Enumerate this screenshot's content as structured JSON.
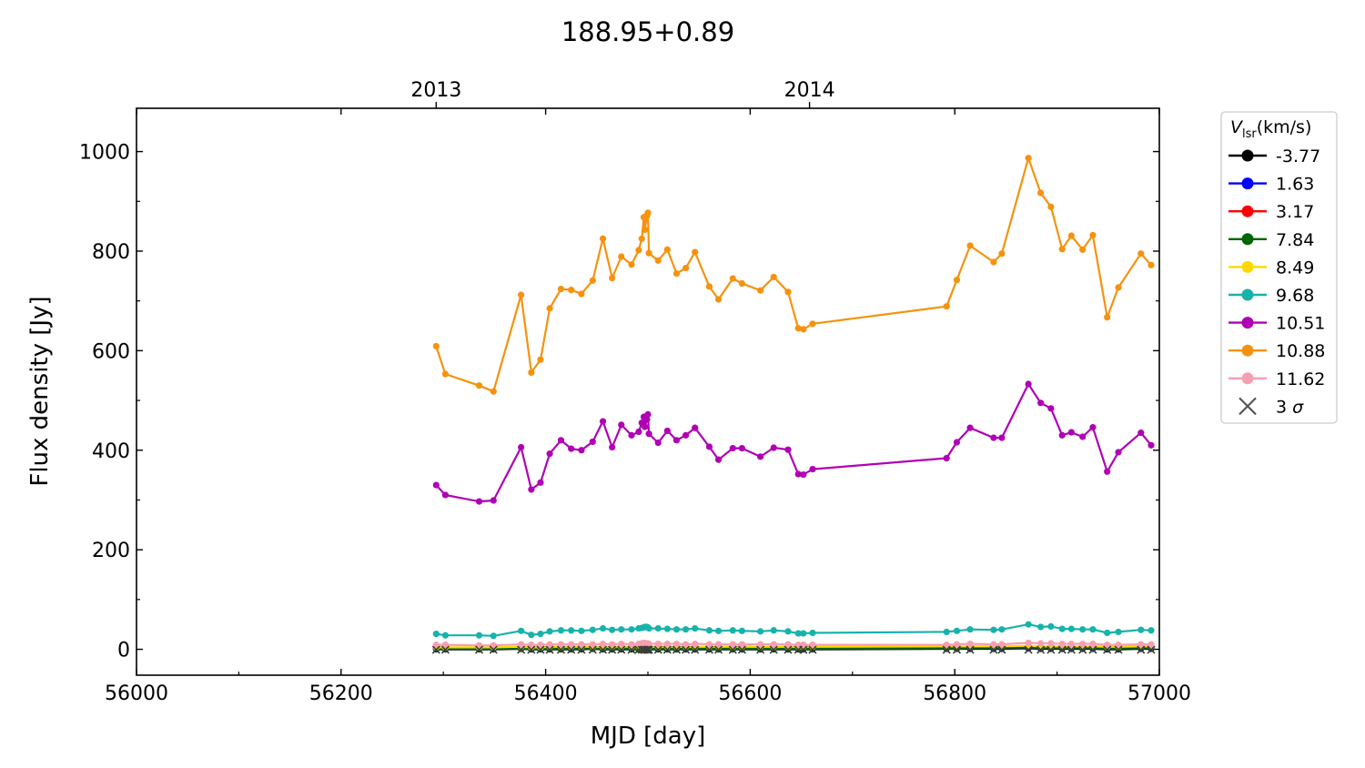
{
  "chart_data": {
    "type": "line",
    "title": "188.95+0.89",
    "xlabel": "MJD [day]",
    "ylabel": "Flux density [Jy]",
    "xlim": [
      56000,
      57000
    ],
    "ylim": [
      -52,
      1087
    ],
    "xticks": [
      56000,
      56200,
      56400,
      56600,
      56800,
      57000
    ],
    "yticks": [
      0,
      200,
      400,
      600,
      800,
      1000
    ],
    "top_axis": {
      "ticks": [
        {
          "x": 56293,
          "label": "2013"
        },
        {
          "x": 56658,
          "label": "2014"
        }
      ]
    },
    "grid": false,
    "legend": {
      "placement": "outside-right",
      "title_main": "V",
      "title_sub": "lsr",
      "title_unit": "(km/s)",
      "sigma_label": "3 σ"
    },
    "x": [
      56293,
      56302,
      56335,
      56349,
      56376,
      56386,
      56395,
      56404,
      56415,
      56425,
      56435,
      56446,
      56456,
      56465,
      56474,
      56484,
      56491,
      56494,
      56496,
      56497,
      56499,
      56500,
      56501,
      56510,
      56519,
      56528,
      56537,
      56546,
      56560,
      56569,
      56583,
      56592,
      56610,
      56623,
      56637,
      56647,
      56652,
      56661,
      56792,
      56802,
      56815,
      56838,
      56846,
      56872,
      56884,
      56894,
      56905,
      56914,
      56925,
      56935,
      56949,
      56960,
      56982,
      56992
    ],
    "series": [
      {
        "name": "-3.77",
        "color": "#000000",
        "values": [
          0,
          0,
          0,
          0,
          1,
          0,
          0,
          0,
          0,
          0,
          0,
          1,
          0,
          0,
          0,
          0,
          0,
          0,
          0,
          0,
          1,
          1,
          0,
          0,
          0,
          0,
          0,
          0,
          0,
          0,
          0,
          0,
          0,
          0,
          0,
          0,
          0,
          0,
          1,
          1,
          1,
          1,
          1,
          2,
          1,
          1,
          1,
          1,
          1,
          1,
          0,
          0,
          1,
          1
        ]
      },
      {
        "name": "1.63",
        "color": "#0000ff",
        "values": [
          1,
          1,
          1,
          1,
          2,
          1,
          1,
          1,
          1,
          1,
          1,
          2,
          1,
          1,
          1,
          1,
          1,
          1,
          2,
          2,
          2,
          2,
          1,
          1,
          1,
          1,
          1,
          1,
          1,
          1,
          1,
          1,
          1,
          1,
          1,
          1,
          1,
          1,
          2,
          2,
          2,
          2,
          2,
          3,
          2,
          2,
          2,
          2,
          2,
          2,
          1,
          1,
          2,
          2
        ]
      },
      {
        "name": "3.17",
        "color": "#ff0000",
        "values": [
          2,
          2,
          2,
          2,
          3,
          2,
          2,
          2,
          2,
          2,
          2,
          3,
          2,
          2,
          2,
          2,
          2,
          2,
          3,
          3,
          3,
          3,
          2,
          2,
          2,
          2,
          2,
          2,
          2,
          2,
          2,
          2,
          2,
          2,
          2,
          2,
          2,
          2,
          3,
          3,
          3,
          3,
          3,
          4,
          3,
          3,
          3,
          3,
          3,
          3,
          2,
          2,
          3,
          3
        ]
      },
      {
        "name": "7.84",
        "color": "#006400",
        "values": [
          1,
          1,
          1,
          1,
          2,
          1,
          1,
          1,
          1,
          1,
          1,
          2,
          1,
          1,
          1,
          1,
          1,
          1,
          2,
          2,
          2,
          2,
          1,
          1,
          1,
          1,
          1,
          1,
          1,
          1,
          1,
          1,
          1,
          1,
          1,
          1,
          1,
          1,
          2,
          2,
          3,
          3,
          3,
          4,
          3,
          3,
          3,
          3,
          3,
          3,
          2,
          2,
          3,
          3
        ]
      },
      {
        "name": "8.49",
        "color": "#ffd700",
        "values": [
          4,
          4,
          4,
          4,
          5,
          4,
          4,
          5,
          5,
          5,
          5,
          5,
          5,
          5,
          5,
          5,
          5,
          5,
          6,
          6,
          6,
          6,
          5,
          5,
          5,
          5,
          5,
          5,
          5,
          5,
          5,
          5,
          5,
          5,
          5,
          5,
          5,
          5,
          6,
          6,
          6,
          6,
          6,
          7,
          6,
          6,
          6,
          6,
          6,
          6,
          5,
          5,
          6,
          6
        ]
      },
      {
        "name": "9.68",
        "color": "#17b3ab",
        "values": [
          31,
          28,
          28,
          27,
          37,
          29,
          31,
          36,
          38,
          38,
          37,
          39,
          42,
          39,
          40,
          40,
          42,
          43,
          44,
          45,
          45,
          44,
          42,
          42,
          41,
          40,
          40,
          42,
          38,
          37,
          38,
          37,
          36,
          38,
          36,
          32,
          32,
          33,
          35,
          37,
          40,
          39,
          40,
          50,
          45,
          46,
          41,
          41,
          40,
          40,
          33,
          35,
          39,
          38
        ]
      },
      {
        "name": "10.51",
        "color": "#b000b5",
        "values": [
          330,
          310,
          297,
          299,
          406,
          321,
          335,
          393,
          420,
          403,
          400,
          417,
          458,
          406,
          451,
          430,
          437,
          455,
          467,
          447,
          462,
          472,
          433,
          415,
          439,
          420,
          430,
          445,
          407,
          381,
          404,
          404,
          387,
          405,
          401,
          352,
          351,
          362,
          384,
          416,
          445,
          425,
          425,
          533,
          495,
          484,
          430,
          436,
          427,
          446,
          357,
          396,
          435,
          410
        ]
      },
      {
        "name": "10.88",
        "color": "#f5920e",
        "values": [
          609,
          553,
          530,
          518,
          712,
          556,
          582,
          685,
          724,
          722,
          714,
          741,
          825,
          746,
          789,
          773,
          802,
          825,
          868,
          843,
          871,
          877,
          796,
          781,
          803,
          755,
          766,
          798,
          729,
          703,
          745,
          735,
          721,
          748,
          718,
          645,
          643,
          654,
          689,
          742,
          811,
          778,
          795,
          987,
          917,
          889,
          804,
          831,
          803,
          832,
          667,
          727,
          795,
          772
        ]
      },
      {
        "name": "11.62",
        "color": "#f5a0b0",
        "values": [
          9,
          9,
          8,
          8,
          10,
          9,
          9,
          10,
          10,
          10,
          10,
          10,
          11,
          10,
          11,
          10,
          11,
          12,
          13,
          12,
          12,
          12,
          11,
          11,
          11,
          11,
          10,
          11,
          10,
          10,
          10,
          10,
          10,
          10,
          10,
          9,
          9,
          9,
          9,
          10,
          11,
          10,
          10,
          13,
          12,
          12,
          11,
          11,
          11,
          11,
          9,
          9,
          10,
          10
        ]
      },
      {
        "name": "3 σ",
        "color": "#3c3c3c",
        "marker": "x",
        "values": [
          -1,
          -1,
          -1,
          -1,
          -1,
          -1,
          -1,
          -1,
          -1,
          -1,
          -1,
          -1,
          -1,
          -1,
          -1,
          -1,
          -1,
          -1,
          -1,
          -1,
          -1,
          -1,
          -1,
          -1,
          -1,
          -1,
          -1,
          -1,
          -1,
          -1,
          -1,
          -1,
          -1,
          -1,
          -1,
          -1,
          -1,
          -1,
          -1,
          -1,
          -1,
          -1,
          -1,
          -1,
          -1,
          -1,
          -1,
          -1,
          -1,
          -1,
          -1,
          -1,
          -1,
          -1
        ]
      }
    ]
  }
}
